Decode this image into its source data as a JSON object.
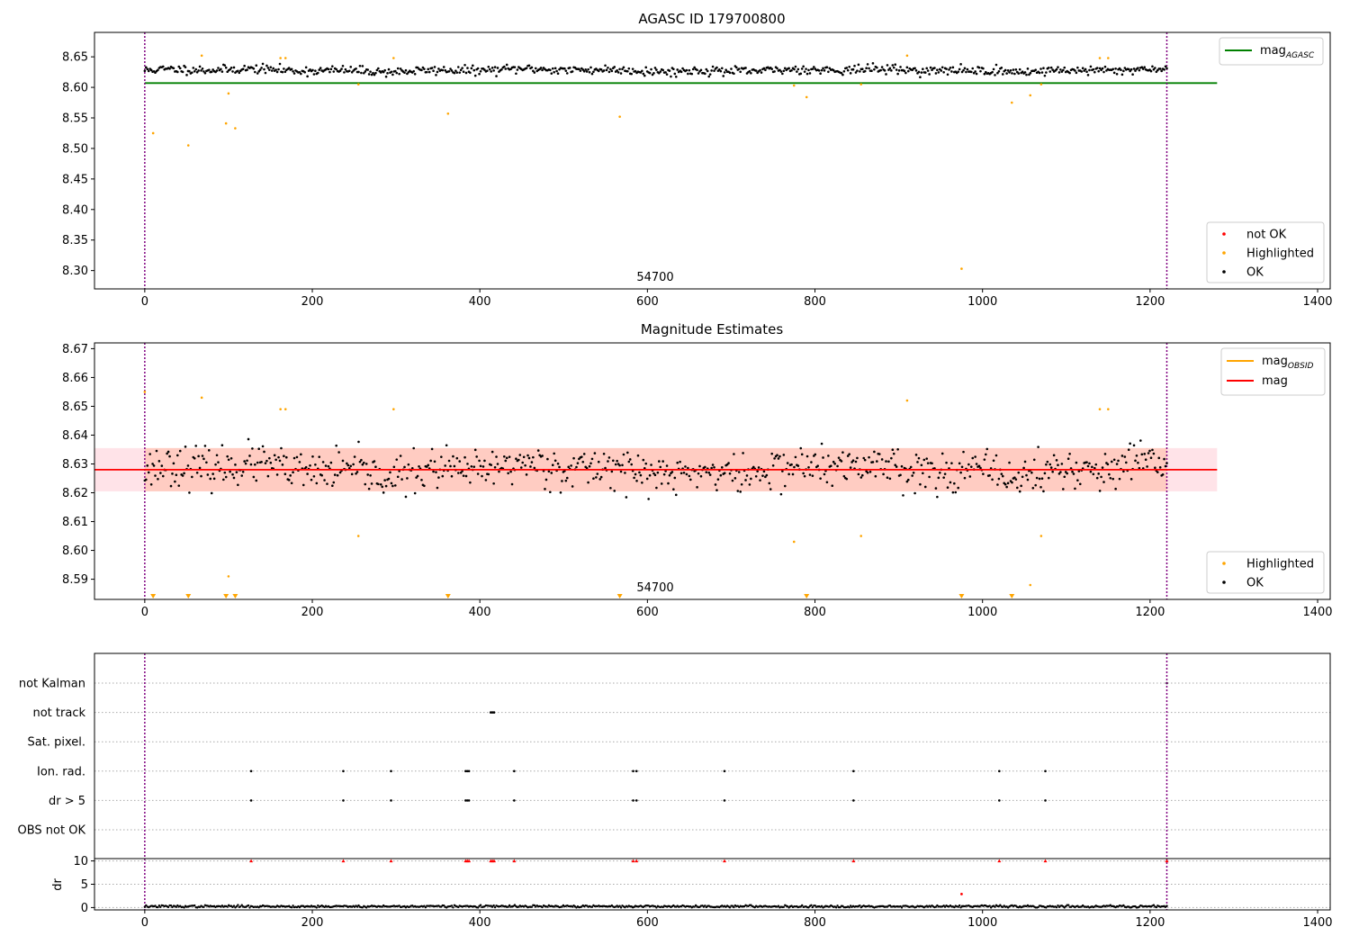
{
  "chart_data": [
    {
      "type": "scatter",
      "title": "AGASC ID 179700800",
      "annotation": "54700",
      "xlim": [
        -60,
        1415
      ],
      "ylim": [
        8.27,
        8.69
      ],
      "x_ticks": [
        0,
        200,
        400,
        600,
        800,
        1000,
        1200,
        1400
      ],
      "y_ticks": [
        8.3,
        8.35,
        8.4,
        8.45,
        8.5,
        8.55,
        8.6,
        8.65
      ],
      "vlines": [
        0,
        1220
      ],
      "mag_agasc": 8.607,
      "mag_agasc_x_range": [
        0,
        1280
      ],
      "ok_series": {
        "name": "OK",
        "color": "#000000",
        "x_range": [
          0,
          1220
        ],
        "center": 8.628,
        "spread": 0.008,
        "count": 780,
        "seed": 11
      },
      "highlighted": {
        "name": "Highlighted",
        "color": "#ffa500",
        "x": [
          10,
          52,
          68,
          97,
          100,
          108,
          162,
          168,
          255,
          297,
          362,
          567,
          775,
          790,
          855,
          910,
          975,
          1035,
          1057,
          1070,
          1140,
          1150
        ],
        "y": [
          8.525,
          8.505,
          8.652,
          8.541,
          8.59,
          8.533,
          8.648,
          8.648,
          8.605,
          8.648,
          8.557,
          8.552,
          8.603,
          8.584,
          8.605,
          8.652,
          8.303,
          8.575,
          8.587,
          8.605,
          8.648,
          8.648
        ]
      },
      "legend_lines": [
        {
          "label": "mag",
          "sub": "AGASC",
          "color": "#008000"
        }
      ],
      "legend_points": [
        {
          "label": "not OK",
          "color": "#ff0000"
        },
        {
          "label": "Highlighted",
          "color": "#ffa500"
        },
        {
          "label": "OK",
          "color": "#000000"
        }
      ]
    },
    {
      "type": "scatter",
      "title": "Magnitude Estimates",
      "annotation": "54700",
      "xlim": [
        -60,
        1415
      ],
      "ylim": [
        8.583,
        8.672
      ],
      "x_ticks": [
        0,
        200,
        400,
        600,
        800,
        1000,
        1200,
        1400
      ],
      "y_ticks": [
        8.59,
        8.6,
        8.61,
        8.62,
        8.63,
        8.64,
        8.65,
        8.66,
        8.67
      ],
      "vlines": [
        0,
        1220
      ],
      "mag": 8.628,
      "band_lo": 8.6205,
      "band_hi": 8.6355,
      "band_x_range": [
        -60,
        1280
      ],
      "ok_series": {
        "name": "OK",
        "color": "#000000",
        "x_range": [
          0,
          1220
        ],
        "center": 8.628,
        "spread": 0.0075,
        "count": 780,
        "seed": 23
      },
      "highlighted": {
        "name": "Highlighted",
        "color": "#ffa500",
        "x": [
          0,
          68,
          100,
          162,
          168,
          255,
          297,
          775,
          855,
          910,
          1057,
          1070,
          1140,
          1150
        ],
        "y": [
          8.655,
          8.653,
          8.591,
          8.649,
          8.649,
          8.605,
          8.649,
          8.603,
          8.605,
          8.652,
          8.588,
          8.605,
          8.649,
          8.649
        ]
      },
      "below_markers": {
        "x": [
          10,
          52,
          97,
          108,
          362,
          567,
          790,
          975,
          1035
        ]
      },
      "legend_lines": [
        {
          "label": "mag",
          "sub": "OBSID",
          "color": "#ffa500"
        },
        {
          "label": "mag",
          "sub": "",
          "color": "#ff0000"
        }
      ],
      "legend_points": [
        {
          "label": "Highlighted",
          "color": "#ffa500"
        },
        {
          "label": "OK",
          "color": "#000000"
        }
      ]
    },
    {
      "type": "scatter",
      "title": "",
      "xlim": [
        -60,
        1415
      ],
      "categories": [
        "not Kalman",
        "not track",
        "Sat. pixel.",
        "Ion. rad.",
        "dr > 5",
        "OBS not OK"
      ],
      "flags": {
        "not Kalman": [
          1220
        ],
        "not track": [
          413,
          415,
          417
        ],
        "Sat. pixel.": [],
        "Ion. rad.": [
          127,
          237,
          294,
          383,
          385,
          387,
          441,
          583,
          587,
          692,
          846,
          1020,
          1075
        ],
        "dr > 5": [
          127,
          237,
          294,
          383,
          385,
          387,
          441,
          583,
          587,
          692,
          846,
          1020,
          1075
        ],
        "OBS not OK": []
      }
    },
    {
      "type": "scatter",
      "title": "",
      "ylabel": "dr",
      "xlim": [
        -60,
        1415
      ],
      "ylim": [
        -0.5,
        10.5
      ],
      "x_ticks": [
        0,
        200,
        400,
        600,
        800,
        1000,
        1200,
        1400
      ],
      "y_ticks": [
        0,
        5,
        10
      ],
      "vlines": [
        0,
        1220
      ],
      "capped_red": {
        "x": [
          127,
          237,
          294,
          383,
          385,
          387,
          413,
          415,
          417,
          441,
          583,
          587,
          692,
          846,
          1020,
          1075,
          1220
        ],
        "y": 10
      },
      "outlier_red": {
        "x": [
          975
        ],
        "y": 2.9
      },
      "dr_series": {
        "name": "dr",
        "color": "#000000",
        "x_range": [
          0,
          1220
        ],
        "center": 0.25,
        "spread": 0.12,
        "count": 780,
        "seed": 37
      }
    }
  ]
}
